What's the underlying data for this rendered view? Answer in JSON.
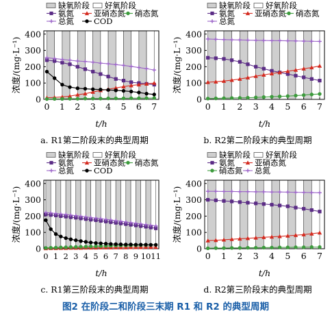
{
  "figure_caption": "图2   在阶段二和阶段三末期 R1 和 R2 的典型周期",
  "legend_labels": {
    "anoxic": "缺氧阶段",
    "aerobic": "好氧阶段",
    "ammonia": "氨氮",
    "nitrite": "亚硝态氮",
    "nitrate": "硝态氮",
    "tn": "总氮",
    "cod": "COD"
  },
  "colors": {
    "ammonia": "#5b2c86",
    "nitrite": "#d42a1f",
    "nitrate": "#3d9b3d",
    "tn": "#9b63c8",
    "cod": "#000000",
    "anoxic_fill": "#cfcfcf"
  },
  "chart_data": [
    {
      "id": "a",
      "type": "line",
      "caption": "a. R1第二阶段末的典型周期",
      "xlabel": "t/h",
      "ylabel": "浓度/(mg·L⁻¹)",
      "xlim": [
        -0.2,
        7.3
      ],
      "ylim": [
        0,
        420
      ],
      "xticks": [
        0,
        1,
        2,
        3,
        4,
        5,
        6,
        7
      ],
      "yticks": [
        0,
        100,
        200,
        300,
        400
      ],
      "phase_bars": {
        "start": 0,
        "end": 7,
        "count": 14,
        "pattern": "anoxic-aerobic"
      },
      "series": [
        {
          "key": "ammonia",
          "x": [
            0,
            0.5,
            1,
            1.5,
            2,
            2.5,
            3,
            3.5,
            4,
            4.5,
            5,
            5.5,
            6,
            6.5,
            7
          ],
          "y": [
            240,
            235,
            225,
            215,
            200,
            185,
            170,
            155,
            140,
            125,
            115,
            105,
            100,
            95,
            90
          ]
        },
        {
          "key": "nitrite",
          "x": [
            0,
            0.5,
            1,
            1.5,
            2,
            2.5,
            3,
            3.5,
            4,
            4.5,
            5,
            5.5,
            6,
            6.5,
            7
          ],
          "y": [
            10,
            12,
            15,
            20,
            28,
            35,
            45,
            55,
            62,
            70,
            78,
            85,
            90,
            95,
            100
          ]
        },
        {
          "key": "nitrate",
          "x": [
            0,
            0.5,
            1,
            1.5,
            2,
            2.5,
            3,
            3.5,
            4,
            4.5,
            5,
            5.5,
            6,
            6.5,
            7
          ],
          "y": [
            2,
            3,
            3,
            4,
            4,
            5,
            5,
            5,
            6,
            6,
            6,
            7,
            7,
            7,
            8
          ]
        },
        {
          "key": "tn",
          "x": [
            0,
            0.5,
            1,
            1.5,
            2,
            2.5,
            3,
            3.5,
            4,
            4.5,
            5,
            5.5,
            6,
            6.5,
            7
          ],
          "y": [
            255,
            250,
            245,
            240,
            235,
            232,
            228,
            222,
            218,
            213,
            208,
            202,
            195,
            188,
            180
          ]
        },
        {
          "key": "cod",
          "x": [
            0,
            0.5,
            1,
            1.5,
            2,
            2.5,
            3,
            3.5,
            4,
            4.5,
            5,
            5.5,
            6,
            6.5,
            7
          ],
          "y": [
            170,
            130,
            90,
            75,
            68,
            65,
            62,
            60,
            58,
            55,
            52,
            48,
            42,
            35,
            30
          ]
        }
      ]
    },
    {
      "id": "b",
      "type": "line",
      "caption": "b. R2第二阶段末的典型周期",
      "xlabel": "t/h",
      "ylabel": "浓度/(mg·L⁻¹)",
      "xlim": [
        -0.2,
        7.3
      ],
      "ylim": [
        0,
        420
      ],
      "xticks": [
        0,
        1,
        2,
        3,
        4,
        5,
        6,
        7
      ],
      "yticks": [
        0,
        100,
        200,
        300,
        400
      ],
      "phase_bars": {
        "start": 0,
        "end": 7,
        "count": 14,
        "pattern": "anoxic-aerobic"
      },
      "series": [
        {
          "key": "ammonia",
          "x": [
            0,
            0.5,
            1,
            1.5,
            2,
            2.5,
            3,
            3.5,
            4,
            4.5,
            5,
            5.5,
            6,
            6.5,
            7
          ],
          "y": [
            255,
            252,
            248,
            240,
            230,
            215,
            200,
            188,
            175,
            165,
            155,
            145,
            135,
            125,
            115
          ]
        },
        {
          "key": "nitrite",
          "x": [
            0,
            0.5,
            1,
            1.5,
            2,
            2.5,
            3,
            3.5,
            4,
            4.5,
            5,
            5.5,
            6,
            6.5,
            7
          ],
          "y": [
            105,
            108,
            112,
            118,
            125,
            133,
            142,
            150,
            158,
            165,
            172,
            180,
            188,
            195,
            205
          ]
        },
        {
          "key": "nitrate",
          "x": [
            0,
            0.5,
            1,
            1.5,
            2,
            2.5,
            3,
            3.5,
            4,
            4.5,
            5,
            5.5,
            6,
            6.5,
            7
          ],
          "y": [
            5,
            6,
            7,
            8,
            9,
            10,
            12,
            14,
            16,
            18,
            20,
            23,
            26,
            30,
            33
          ]
        },
        {
          "key": "tn",
          "x": [
            0,
            0.5,
            1,
            1.5,
            2,
            2.5,
            3,
            3.5,
            4,
            4.5,
            5,
            5.5,
            6,
            6.5,
            7
          ],
          "y": [
            370,
            368,
            366,
            365,
            364,
            363,
            362,
            361,
            360,
            360,
            359,
            358,
            357,
            356,
            355
          ]
        }
      ]
    },
    {
      "id": "c",
      "type": "line",
      "caption": "c. R1第三阶段末的典型周期",
      "xlabel": "t/h",
      "ylabel": "浓度/(mg·L⁻¹)",
      "xlim": [
        -0.2,
        11.3
      ],
      "ylim": [
        0,
        420
      ],
      "xticks": [
        0,
        1,
        2,
        3,
        4,
        5,
        6,
        7,
        8,
        9,
        10,
        11
      ],
      "yticks": [
        0,
        100,
        200,
        300,
        400
      ],
      "phase_bars": {
        "start": 0,
        "end": 11,
        "count": 22,
        "pattern": "anoxic-aerobic"
      },
      "series": [
        {
          "key": "ammonia",
          "x": [
            0,
            0.5,
            1,
            1.5,
            2,
            2.5,
            3,
            3.5,
            4,
            4.5,
            5,
            5.5,
            6,
            6.5,
            7,
            7.5,
            8,
            8.5,
            9,
            9.5,
            10,
            10.5,
            11
          ],
          "y": [
            210,
            207,
            204,
            200,
            197,
            193,
            190,
            186,
            182,
            178,
            175,
            171,
            167,
            163,
            159,
            155,
            151,
            147,
            143,
            139,
            135,
            130,
            125
          ]
        },
        {
          "key": "nitrite",
          "x": [
            0,
            0.5,
            1,
            1.5,
            2,
            2.5,
            3,
            3.5,
            4,
            4.5,
            5,
            5.5,
            6,
            6.5,
            7,
            7.5,
            8,
            8.5,
            9,
            9.5,
            10,
            10.5,
            11
          ],
          "y": [
            2,
            3,
            3,
            4,
            4,
            5,
            5,
            5,
            6,
            6,
            6,
            7,
            7,
            7,
            8,
            8,
            8,
            9,
            9,
            9,
            10,
            10,
            10
          ]
        },
        {
          "key": "nitrate",
          "x": [
            0,
            0.5,
            1,
            1.5,
            2,
            2.5,
            3,
            3.5,
            4,
            4.5,
            5,
            5.5,
            6,
            6.5,
            7,
            7.5,
            8,
            8.5,
            9,
            9.5,
            10,
            10.5,
            11
          ],
          "y": [
            5,
            6,
            7,
            8,
            9,
            10,
            11,
            12,
            13,
            14,
            15,
            16,
            17,
            18,
            19,
            20,
            20,
            21,
            21,
            22,
            22,
            23,
            23
          ]
        },
        {
          "key": "tn",
          "x": [
            0,
            0.5,
            1,
            1.5,
            2,
            2.5,
            3,
            3.5,
            4,
            4.5,
            5,
            5.5,
            6,
            6.5,
            7,
            7.5,
            8,
            8.5,
            9,
            9.5,
            10,
            10.5,
            11
          ],
          "y": [
            222,
            219,
            216,
            213,
            210,
            206,
            203,
            199,
            195,
            191,
            188,
            184,
            180,
            176,
            172,
            168,
            164,
            160,
            156,
            152,
            148,
            144,
            140
          ]
        },
        {
          "key": "cod",
          "x": [
            0,
            0.5,
            1,
            1.5,
            2,
            2.5,
            3,
            3.5,
            4,
            4.5,
            5,
            5.5,
            6,
            6.5,
            7,
            7.5,
            8,
            8.5,
            9,
            9.5,
            10,
            10.5,
            11
          ],
          "y": [
            175,
            120,
            90,
            75,
            65,
            58,
            52,
            47,
            42,
            38,
            35,
            33,
            31,
            29,
            28,
            27,
            26,
            26,
            25,
            25,
            25,
            24,
            24
          ]
        }
      ]
    },
    {
      "id": "d",
      "type": "line",
      "caption": "d. R2第三阶段末的典型周期",
      "xlabel": "t/h",
      "ylabel": "浓度/(mg·L⁻¹)",
      "xlim": [
        -0.2,
        7.3
      ],
      "ylim": [
        0,
        420
      ],
      "xticks": [
        0,
        1,
        2,
        3,
        4,
        5,
        6,
        7
      ],
      "yticks": [
        0,
        100,
        200,
        300,
        400
      ],
      "phase_bars": {
        "start": 0,
        "end": 7,
        "count": 14,
        "pattern": "anoxic-aerobic"
      },
      "series": [
        {
          "key": "ammonia",
          "x": [
            0,
            0.5,
            1,
            1.5,
            2,
            2.5,
            3,
            3.5,
            4,
            4.5,
            5,
            5.5,
            6,
            6.5,
            7
          ],
          "y": [
            300,
            297,
            293,
            290,
            286,
            282,
            278,
            274,
            270,
            265,
            260,
            252,
            245,
            237,
            228
          ]
        },
        {
          "key": "nitrite",
          "x": [
            0,
            0.5,
            1,
            1.5,
            2,
            2.5,
            3,
            3.5,
            4,
            4.5,
            5,
            5.5,
            6,
            6.5,
            7
          ],
          "y": [
            50,
            52,
            55,
            58,
            61,
            64,
            67,
            70,
            73,
            76,
            79,
            83,
            87,
            92,
            98
          ]
        },
        {
          "key": "nitrate",
          "x": [
            0,
            0.5,
            1,
            1.5,
            2,
            2.5,
            3,
            3.5,
            4,
            4.5,
            5,
            5.5,
            6,
            6.5,
            7
          ],
          "y": [
            3,
            4,
            4,
            5,
            5,
            6,
            6,
            7,
            7,
            8,
            8,
            9,
            9,
            10,
            10
          ]
        },
        {
          "key": "tn",
          "x": [
            0,
            0.5,
            1,
            1.5,
            2,
            2.5,
            3,
            3.5,
            4,
            4.5,
            5,
            5.5,
            6,
            6.5,
            7
          ],
          "y": [
            352,
            352,
            351,
            351,
            350,
            350,
            349,
            349,
            348,
            348,
            347,
            346,
            345,
            344,
            343
          ]
        }
      ]
    }
  ]
}
